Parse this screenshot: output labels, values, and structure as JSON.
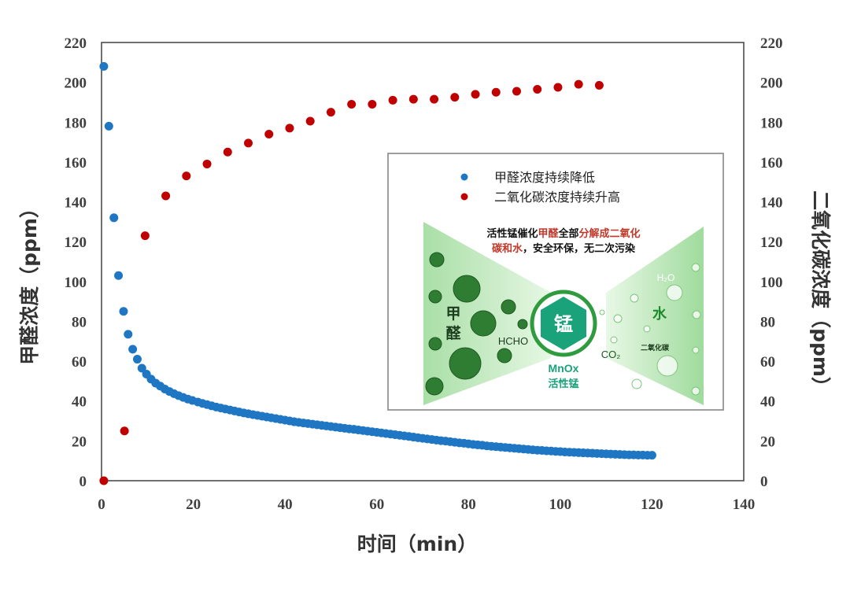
{
  "chart_data": {
    "type": "scatter",
    "xlabel": "时间（min）",
    "ylabel_left": "甲醛浓度（ppm）",
    "ylabel_right": "二氧化碳浓度（ppm）",
    "xlim": [
      0,
      140
    ],
    "ylim": [
      0,
      220
    ],
    "x_ticks": [
      "0",
      "20",
      "40",
      "60",
      "80",
      "100",
      "120",
      "140"
    ],
    "y_ticks": [
      "0",
      "20",
      "40",
      "60",
      "80",
      "100",
      "120",
      "140",
      "160",
      "180",
      "200",
      "220"
    ],
    "grid": false,
    "legend_position": "inset-right",
    "colors": {
      "formaldehyde": "#1f77c4",
      "co2": "#c00000",
      "frame": "#404040"
    },
    "series": [
      {
        "name": "甲醛浓度持续降低",
        "color": "#1f77c4",
        "points": [
          [
            0.5,
            208
          ],
          [
            1.6,
            178
          ],
          [
            2.7,
            132
          ],
          [
            3.7,
            103
          ],
          [
            4.8,
            85
          ],
          [
            5.8,
            73.5
          ],
          [
            6.8,
            66
          ],
          [
            7.8,
            61
          ],
          [
            8.8,
            56.5
          ],
          [
            9.8,
            53.5
          ],
          [
            10.8,
            51
          ],
          [
            11.8,
            49
          ],
          [
            12.8,
            47.5
          ],
          [
            13.8,
            46
          ],
          [
            14.8,
            44.8
          ],
          [
            15.8,
            43.7
          ],
          [
            16.8,
            42.7
          ],
          [
            17.8,
            41.8
          ],
          [
            18.8,
            41
          ],
          [
            19.8,
            40.3
          ],
          [
            21,
            39.5
          ],
          [
            22,
            38.8
          ],
          [
            23,
            38.2
          ],
          [
            24,
            37.6
          ],
          [
            25,
            37
          ],
          [
            26,
            36.5
          ],
          [
            27,
            36
          ],
          [
            28,
            35.5
          ],
          [
            29,
            35
          ],
          [
            30,
            34.5
          ],
          [
            31,
            34
          ],
          [
            32,
            33.6
          ],
          [
            33,
            33.2
          ],
          [
            34,
            32.8
          ],
          [
            35,
            32.4
          ],
          [
            36,
            32
          ],
          [
            37,
            31.6
          ],
          [
            38,
            31.2
          ],
          [
            39,
            30.8
          ],
          [
            40,
            30.4
          ],
          [
            41,
            30
          ],
          [
            42,
            29.6
          ],
          [
            43,
            29.3
          ],
          [
            44,
            29
          ],
          [
            45,
            28.7
          ],
          [
            46,
            28.4
          ],
          [
            47,
            28.1
          ],
          [
            48,
            27.8
          ],
          [
            49,
            27.5
          ],
          [
            50,
            27.2
          ],
          [
            51,
            26.9
          ],
          [
            52,
            26.6
          ],
          [
            53,
            26.3
          ],
          [
            54,
            26
          ],
          [
            55,
            25.8
          ],
          [
            56,
            25.5
          ],
          [
            57,
            25.2
          ],
          [
            58,
            24.9
          ],
          [
            59,
            24.6
          ],
          [
            60,
            24.3
          ],
          [
            61,
            24
          ],
          [
            62,
            23.7
          ],
          [
            63,
            23.4
          ],
          [
            64,
            23.1
          ],
          [
            65,
            22.8
          ],
          [
            66,
            22.5
          ],
          [
            67,
            22.2
          ],
          [
            68,
            21.9
          ],
          [
            69,
            21.6
          ],
          [
            70,
            21.3
          ],
          [
            71,
            21
          ],
          [
            72,
            20.7
          ],
          [
            73,
            20.4
          ],
          [
            74,
            20.1
          ],
          [
            75,
            19.9
          ],
          [
            76,
            19.6
          ],
          [
            77,
            19.3
          ],
          [
            78,
            19
          ],
          [
            79,
            18.8
          ],
          [
            80,
            18.5
          ],
          [
            81,
            18.2
          ],
          [
            82,
            18
          ],
          [
            83,
            17.8
          ],
          [
            84,
            17.5
          ],
          [
            85,
            17.3
          ],
          [
            86,
            17.1
          ],
          [
            87,
            16.9
          ],
          [
            88,
            16.7
          ],
          [
            89,
            16.5
          ],
          [
            90,
            16.3
          ],
          [
            91,
            16.1
          ],
          [
            92,
            15.9
          ],
          [
            93,
            15.7
          ],
          [
            94,
            15.5
          ],
          [
            95,
            15.3
          ],
          [
            96,
            15.2
          ],
          [
            97,
            15
          ],
          [
            98,
            14.9
          ],
          [
            99,
            14.7
          ],
          [
            100,
            14.6
          ],
          [
            101,
            14.4
          ],
          [
            102,
            14.3
          ],
          [
            103,
            14.2
          ],
          [
            104,
            14.1
          ],
          [
            105,
            14
          ],
          [
            106,
            13.9
          ],
          [
            107,
            13.8
          ],
          [
            108,
            13.7
          ],
          [
            109,
            13.6
          ],
          [
            110,
            13.5
          ],
          [
            111,
            13.4
          ],
          [
            112,
            13.3
          ],
          [
            113,
            13.2
          ],
          [
            114,
            13.1
          ],
          [
            115,
            13
          ],
          [
            116,
            13
          ],
          [
            117,
            12.9
          ],
          [
            118,
            12.9
          ],
          [
            119,
            12.8
          ],
          [
            120,
            12.8
          ]
        ]
      },
      {
        "name": "二氧化碳浓度持续升高",
        "color": "#c00000",
        "points": [
          [
            0.5,
            0
          ],
          [
            5,
            25
          ],
          [
            9.5,
            123
          ],
          [
            14,
            143
          ],
          [
            18.5,
            153
          ],
          [
            23,
            159
          ],
          [
            27.5,
            165
          ],
          [
            32,
            169.5
          ],
          [
            36.5,
            174
          ],
          [
            41,
            177
          ],
          [
            45.5,
            180.5
          ],
          [
            50,
            185
          ],
          [
            54.5,
            189
          ],
          [
            59,
            189
          ],
          [
            63.5,
            191
          ],
          [
            68,
            191.5
          ],
          [
            72.5,
            191.5
          ],
          [
            77,
            192.5
          ],
          [
            81.5,
            194
          ],
          [
            86,
            195
          ],
          [
            90.5,
            195.5
          ],
          [
            95,
            196.5
          ],
          [
            99.5,
            197.5
          ],
          [
            104,
            199
          ],
          [
            108.5,
            198.5
          ]
        ]
      }
    ]
  },
  "inset": {
    "legend": [
      {
        "label": "甲醛浓度持续降低",
        "color": "#1f77c4"
      },
      {
        "label": "二氧化碳浓度持续升高",
        "color": "#c00000"
      }
    ],
    "caption_line1_a": "活性锰催化",
    "caption_line1_b": "甲醛",
    "caption_line1_c": "全部",
    "caption_line1_d": "分解成二氧化",
    "caption_line2_a": "碳和水",
    "caption_line2_b": "，安全环保，无二次污染",
    "left_label_1": "甲",
    "left_label_2": "醛",
    "hcho": "HCHO",
    "center_char": "锰",
    "mnox": "MnOx",
    "mnox_cn": "活性锰",
    "water": "水",
    "h2o": "H₂O",
    "co2": "CO₂",
    "co2_cn": "二氧化碳",
    "colors": {
      "green_dark": "#2e8b3e",
      "green_light": "#c8ecc8",
      "teal": "#1aa37a"
    }
  }
}
